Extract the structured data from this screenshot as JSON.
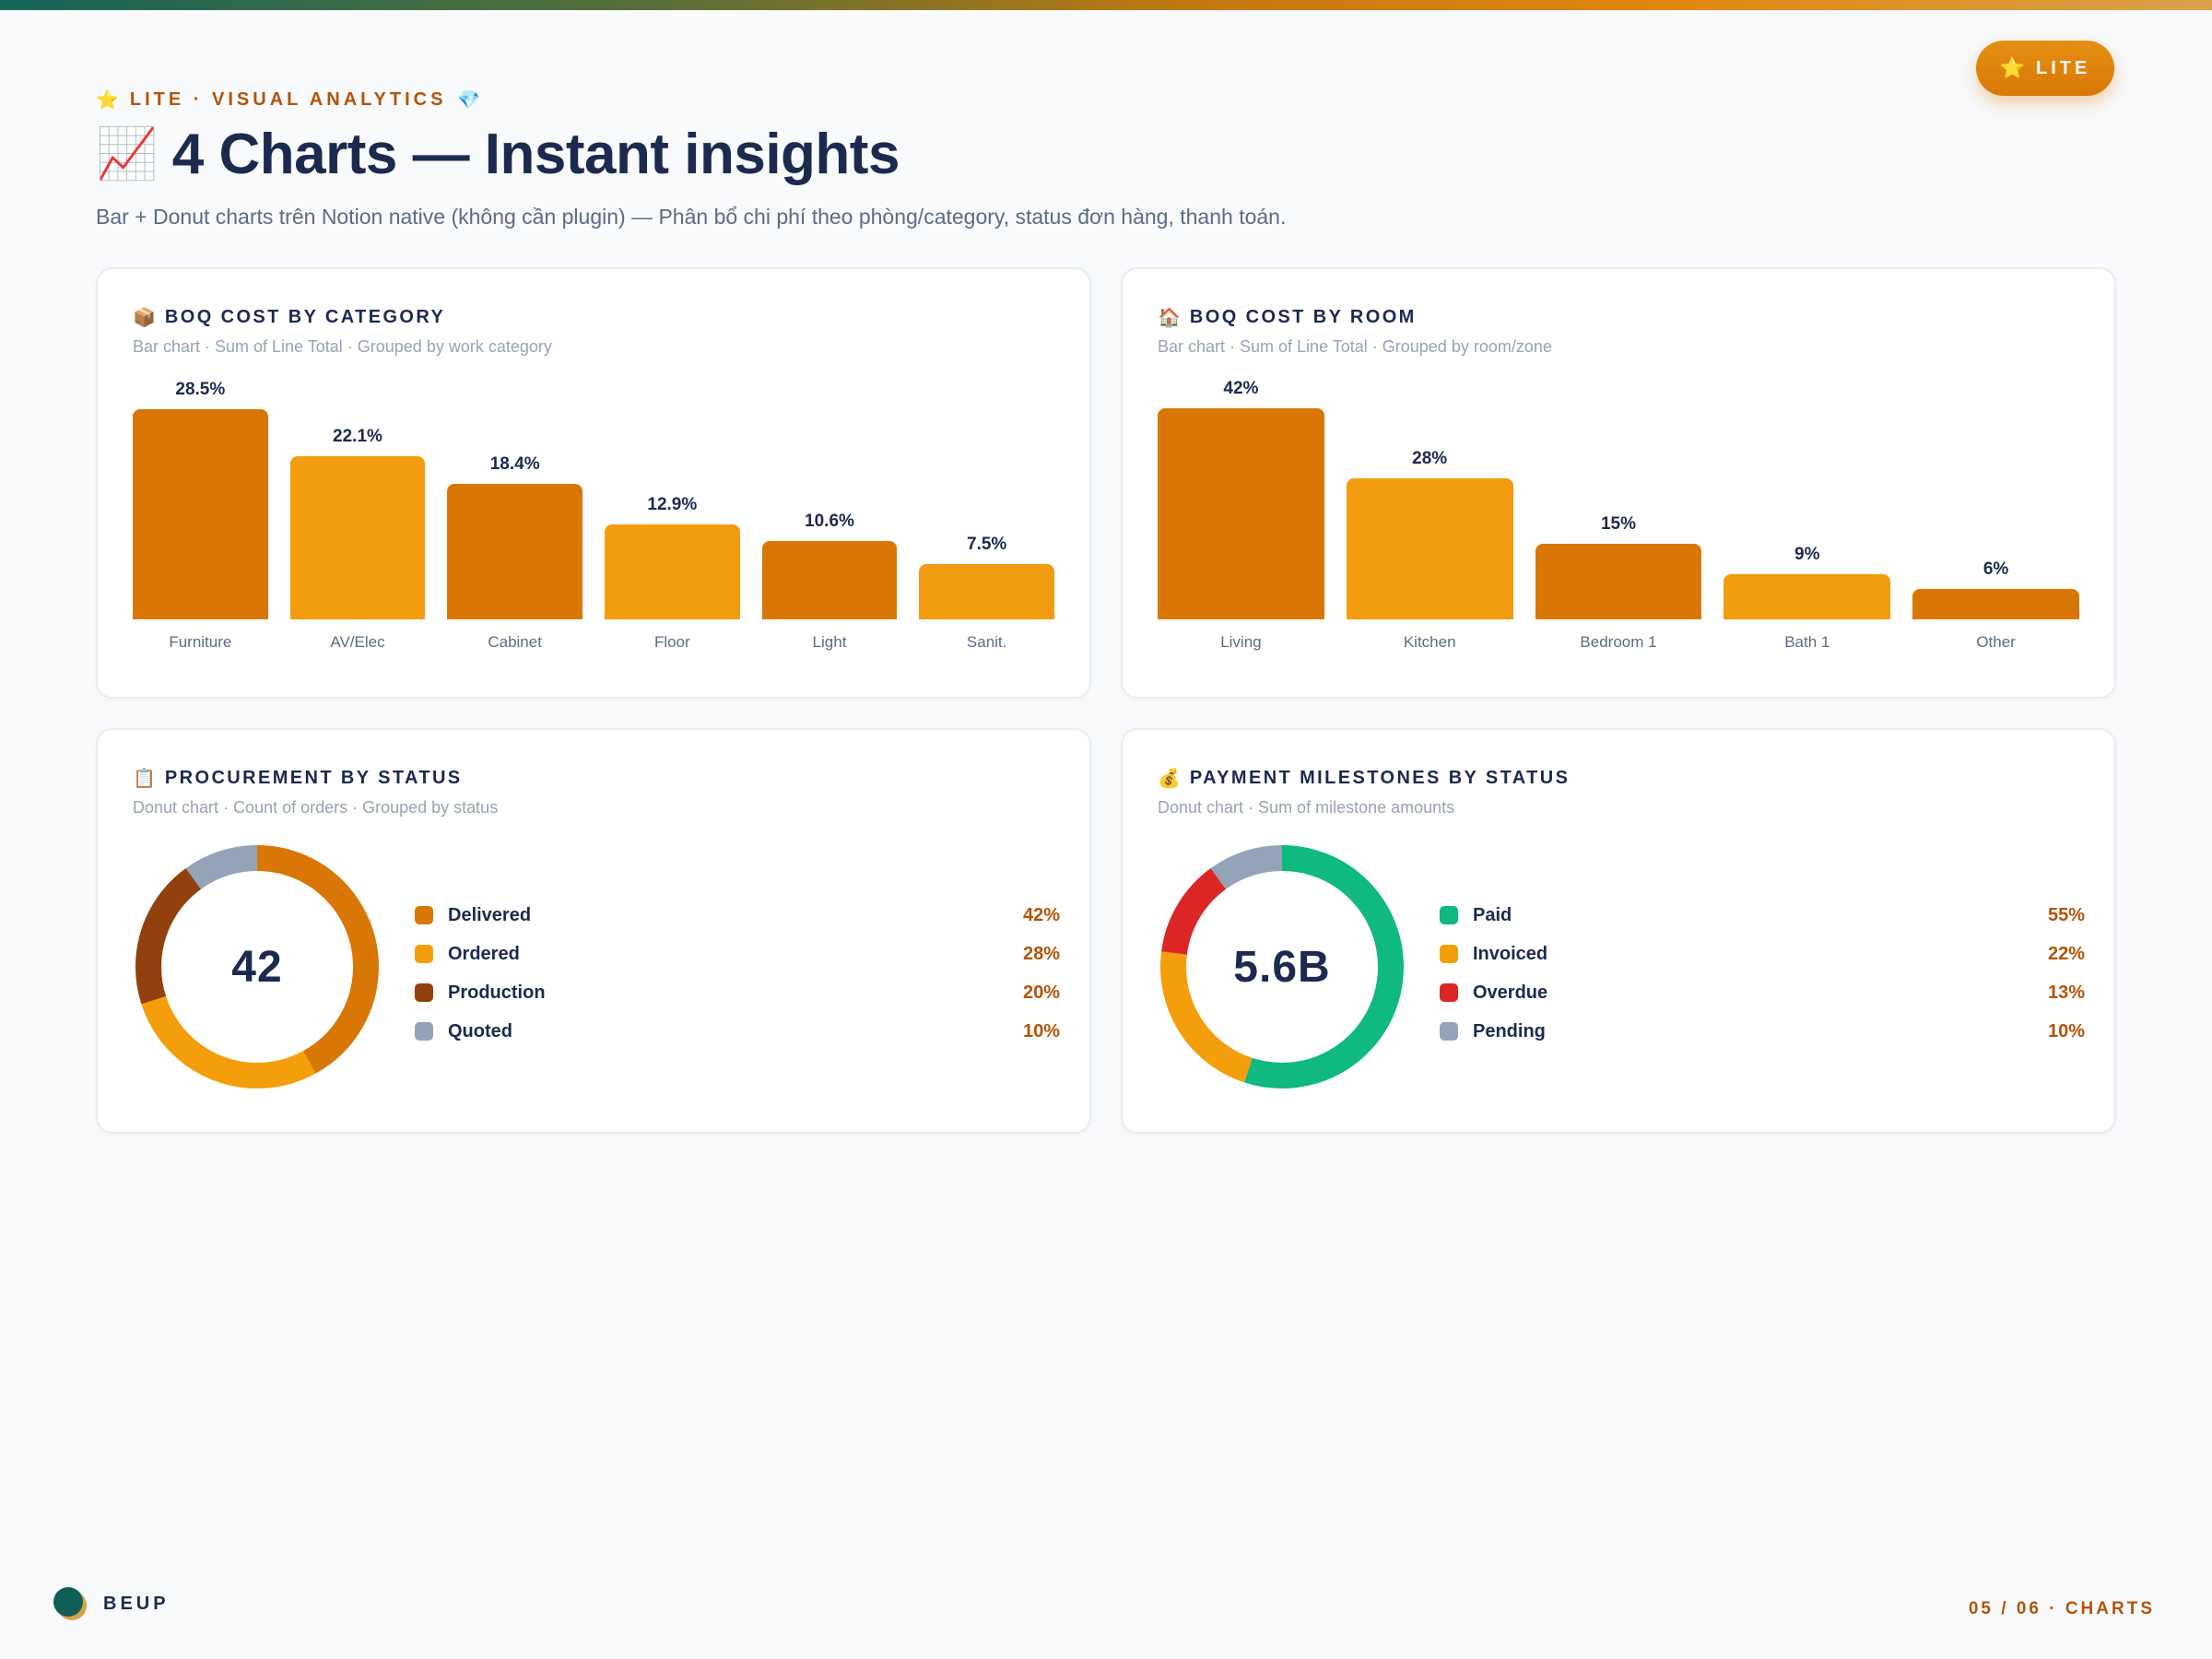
{
  "header": {
    "eyebrow_icon_left": "⭐",
    "eyebrow": "LITE · VISUAL ANALYTICS",
    "eyebrow_icon_right": "💎",
    "title_icon": "📈",
    "title": "4 Charts — Instant insights",
    "subtitle": "Bar + Donut charts trên Notion native (không cần plugin) — Phân bổ chi phí theo phòng/category, status đơn hàng, thanh toán.",
    "badge_icon": "⭐",
    "badge_label": "LITE"
  },
  "colors": {
    "accent": "#d97706",
    "accent_light": "#f39c0f",
    "brown": "#92400e",
    "slate": "#94a3b8",
    "green": "#10b981",
    "red": "#dc2626",
    "track": "#eef2f7"
  },
  "cards": [
    {
      "icon": "📦",
      "title": "BOQ COST BY CATEGORY",
      "subtitle": "Bar chart · Sum of Line Total · Grouped by work category"
    },
    {
      "icon": "🏠",
      "title": "BOQ COST BY ROOM",
      "subtitle": "Bar chart · Sum of Line Total · Grouped by room/zone"
    },
    {
      "icon": "📋",
      "title": "PROCUREMENT BY STATUS",
      "subtitle": "Donut chart · Count of orders · Grouped by status",
      "center": "42"
    },
    {
      "icon": "💰",
      "title": "PAYMENT MILESTONES BY STATUS",
      "subtitle": "Donut chart · Sum of milestone amounts",
      "center": "5.6B"
    }
  ],
  "chart_data": [
    {
      "type": "bar",
      "title": "BOQ COST BY CATEGORY",
      "categories": [
        "Furniture",
        "AV/Elec",
        "Cabinet",
        "Floor",
        "Light",
        "Sanit."
      ],
      "values": [
        28.5,
        22.1,
        18.4,
        12.9,
        10.6,
        7.5
      ],
      "labels": [
        "28.5%",
        "22.1%",
        "18.4%",
        "12.9%",
        "10.6%",
        "7.5%"
      ],
      "ylim": [
        0,
        30
      ]
    },
    {
      "type": "bar",
      "title": "BOQ COST BY ROOM",
      "categories": [
        "Living",
        "Kitchen",
        "Bedroom 1",
        "Bath 1",
        "Other"
      ],
      "values": [
        42,
        28,
        15,
        9,
        6
      ],
      "labels": [
        "42%",
        "28%",
        "15%",
        "9%",
        "6%"
      ],
      "ylim": [
        0,
        44
      ]
    },
    {
      "type": "pie",
      "title": "PROCUREMENT BY STATUS",
      "categories": [
        "Delivered",
        "Ordered",
        "Production",
        "Quoted"
      ],
      "values": [
        42,
        28,
        20,
        10
      ],
      "labels": [
        "42%",
        "28%",
        "20%",
        "10%"
      ],
      "colors": [
        "#d97706",
        "#f59e0b",
        "#92400e",
        "#94a3b8"
      ]
    },
    {
      "type": "pie",
      "title": "PAYMENT MILESTONES BY STATUS",
      "categories": [
        "Paid",
        "Invoiced",
        "Overdue",
        "Pending"
      ],
      "values": [
        55,
        22,
        13,
        10
      ],
      "labels": [
        "55%",
        "22%",
        "13%",
        "10%"
      ],
      "colors": [
        "#10b981",
        "#f59e0b",
        "#dc2626",
        "#94a3b8"
      ]
    }
  ],
  "footer": {
    "brand": "BEUP",
    "page": "05 / 06 · CHARTS"
  }
}
